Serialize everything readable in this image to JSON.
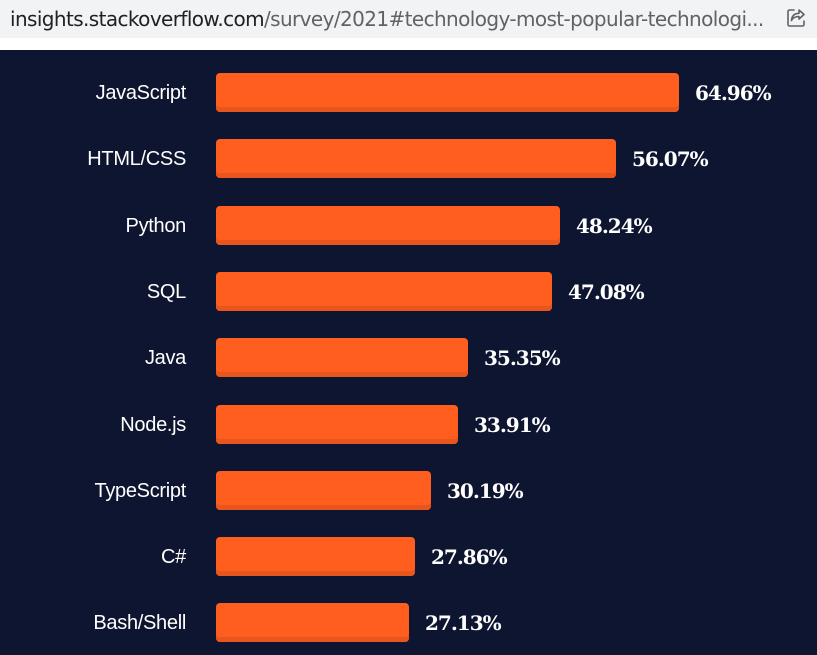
{
  "browser": {
    "url_host": "insights.stackoverflow.com",
    "url_path": "/survey/2021#technology-most-popular-technologi...",
    "share_icon": "share-icon"
  },
  "colors": {
    "background": "#0e1530",
    "bar": "#ff5e1f",
    "bar_shadow": "#e8561e",
    "text": "#ffffff"
  },
  "chart_data": {
    "type": "bar",
    "orientation": "horizontal",
    "title": "",
    "xlabel": "",
    "ylabel": "",
    "unit": "%",
    "categories": [
      "JavaScript",
      "HTML/CSS",
      "Python",
      "SQL",
      "Java",
      "Node.js",
      "TypeScript",
      "C#",
      "Bash/Shell"
    ],
    "values": [
      64.96,
      56.07,
      48.24,
      47.08,
      35.35,
      33.91,
      30.19,
      27.86,
      27.13
    ],
    "value_labels": [
      "64.96%",
      "56.07%",
      "48.24%",
      "47.08%",
      "35.35%",
      "33.91%",
      "30.19%",
      "27.86%",
      "27.13%"
    ],
    "xlim": [
      0,
      100
    ],
    "grid": false,
    "legend": null
  }
}
